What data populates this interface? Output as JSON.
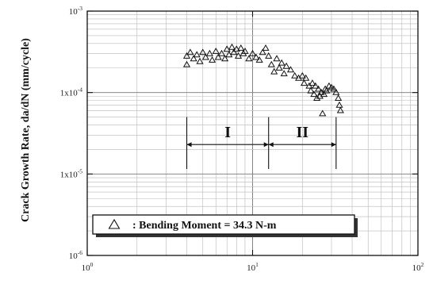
{
  "chart_data": {
    "type": "scatter",
    "title": "",
    "xlabel": "",
    "ylabel": "Crack Growth Rate, da/dN (mm/cycle)",
    "x_scale": "log",
    "y_scale": "log",
    "xlim": [
      1,
      100
    ],
    "ylim": [
      1e-06,
      0.001
    ],
    "grid": true,
    "legend_position": "bottom-left",
    "x_ticks": [
      {
        "base": "10",
        "exp": "0"
      },
      {
        "base": "10",
        "exp": "1"
      },
      {
        "base": "10",
        "exp": "2"
      }
    ],
    "y_ticks": [
      {
        "base": "10",
        "exp": "-3",
        "prefix": ""
      },
      {
        "base": "10",
        "exp": "-4",
        "prefix": "1x"
      },
      {
        "base": "10",
        "exp": "-5",
        "prefix": "1x"
      },
      {
        "base": "10",
        "exp": "-6",
        "prefix": ""
      }
    ],
    "regions": [
      {
        "label": "I",
        "x_start": 4,
        "x_end": 12.5
      },
      {
        "label": "II",
        "x_start": 12.5,
        "x_end": 32
      }
    ],
    "series": [
      {
        "name": ": Bending Moment = 34.3 N-m",
        "marker": "triangle-open",
        "points": [
          [
            4.0,
            0.00028
          ],
          [
            4.0,
            0.00022
          ],
          [
            4.2,
            0.00031
          ],
          [
            4.4,
            0.00026
          ],
          [
            4.6,
            0.00029
          ],
          [
            4.8,
            0.00024
          ],
          [
            5.0,
            0.00031
          ],
          [
            5.2,
            0.00027
          ],
          [
            5.5,
            0.0003
          ],
          [
            5.7,
            0.00025
          ],
          [
            6.0,
            0.00032
          ],
          [
            6.2,
            0.00027
          ],
          [
            6.5,
            0.0003
          ],
          [
            6.8,
            0.00026
          ],
          [
            7.0,
            0.00034
          ],
          [
            7.2,
            0.00029
          ],
          [
            7.5,
            0.00036
          ],
          [
            7.7,
            0.00031
          ],
          [
            8.0,
            0.00034
          ],
          [
            8.2,
            0.00028
          ],
          [
            8.5,
            0.00035
          ],
          [
            8.8,
            0.0003
          ],
          [
            9.0,
            0.00032
          ],
          [
            9.5,
            0.00026
          ],
          [
            10.0,
            0.0003
          ],
          [
            10.5,
            0.00027
          ],
          [
            11.0,
            0.00025
          ],
          [
            11.5,
            0.00031
          ],
          [
            12.0,
            0.00035
          ],
          [
            12.5,
            0.00028
          ],
          [
            13.0,
            0.00022
          ],
          [
            13.5,
            0.00018
          ],
          [
            14.0,
            0.00026
          ],
          [
            14.5,
            0.0002
          ],
          [
            15.0,
            0.00023
          ],
          [
            15.5,
            0.00017
          ],
          [
            16.0,
            0.00021
          ],
          [
            17.0,
            0.00019
          ],
          [
            18.0,
            0.00016
          ],
          [
            19.0,
            0.00015
          ],
          [
            20.0,
            0.00016
          ],
          [
            20.5,
            0.00013
          ],
          [
            21.0,
            0.00015
          ],
          [
            22.0,
            0.00012
          ],
          [
            22.5,
            0.000105
          ],
          [
            23.0,
            0.00013
          ],
          [
            23.5,
            9.5e-05
          ],
          [
            24.0,
            0.00012
          ],
          [
            24.5,
            8.5e-05
          ],
          [
            25.0,
            0.00011
          ],
          [
            25.5,
            9e-05
          ],
          [
            26.0,
            0.0001
          ],
          [
            26.5,
            5.5e-05
          ],
          [
            27.0,
            9.5e-05
          ],
          [
            27.5,
            0.00011
          ],
          [
            28.0,
            0.000105
          ],
          [
            29.0,
            0.00012
          ],
          [
            30.0,
            0.000115
          ],
          [
            31.0,
            0.00011
          ],
          [
            32.0,
            0.0001
          ],
          [
            33.0,
            8.5e-05
          ],
          [
            33.5,
            7e-05
          ],
          [
            34.0,
            6e-05
          ]
        ]
      }
    ]
  }
}
